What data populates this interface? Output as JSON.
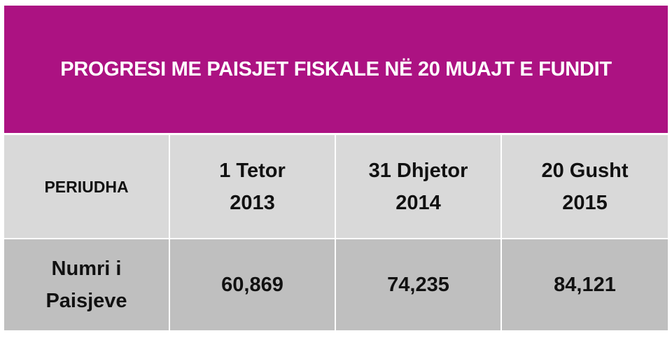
{
  "title": "PROGRESI ME PAISJET FISKALE NË 20 MUAJT E FUNDIT",
  "table": {
    "header": [
      [
        "PERIUDHA"
      ],
      [
        "1 Tetor",
        "2013"
      ],
      [
        "31 Dhjetor",
        "2014"
      ],
      [
        "20 Gusht",
        "2015"
      ]
    ],
    "rows": [
      [
        [
          "Numri i",
          "Paisjeve"
        ],
        [
          "60,869"
        ],
        [
          "74,235"
        ],
        [
          "84,121"
        ]
      ]
    ]
  }
}
